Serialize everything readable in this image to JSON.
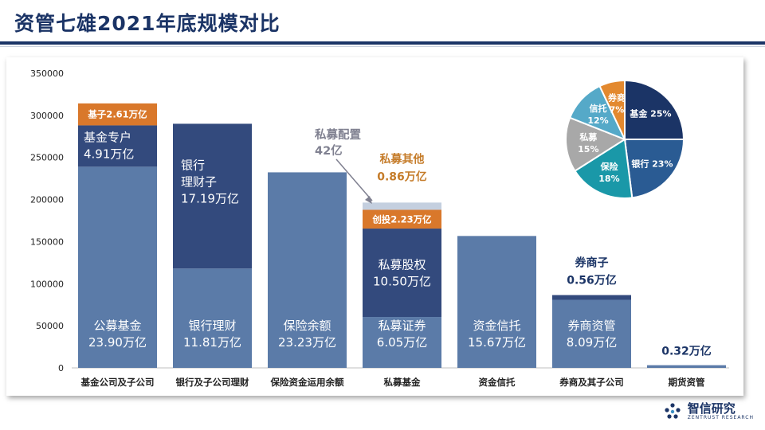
{
  "page": {
    "title": "资管七雄2021年底规模对比"
  },
  "logo": {
    "name": "智信研究",
    "subtitle": "ZENTRUST RESEARCH"
  },
  "colors": {
    "base": "#5b7ba8",
    "dark": "#334a7d",
    "orange": "#d9782b",
    "light": "#c4cfdf",
    "label_orange": "#c57c2a",
    "label_dark": "#1b3466",
    "annotation_gray": "#7f8090"
  },
  "chart_data": [
    {
      "type": "bar",
      "stacked": true,
      "title": "",
      "ylim": [
        0,
        350000
      ],
      "yticks": [
        0,
        50000,
        100000,
        150000,
        200000,
        250000,
        300000,
        350000
      ],
      "ytick_labels": [
        "0",
        "50000",
        "100000",
        "150000",
        "200000",
        "250000",
        "300000",
        "350000"
      ],
      "categories": [
        "基金公司及子公司",
        "银行及子公司理财",
        "保险资金运用余额",
        "私募基金",
        "资金信托",
        "券商及其子公司",
        "期货资管"
      ],
      "bars": [
        {
          "category": "基金公司及子公司",
          "segments": [
            {
              "name": "公募基金",
              "value": 239000,
              "color": "base",
              "label": [
                "公募基金",
                "23.90万亿"
              ],
              "label_pos": "in-bottom"
            },
            {
              "name": "基金专户",
              "value": 49100,
              "color": "dark",
              "label": [
                "基金专户",
                "4.91万亿"
              ],
              "label_pos": "in-top"
            },
            {
              "name": "基子",
              "value": 26100,
              "color": "orange",
              "label": [
                "基子2.61万亿"
              ],
              "label_pos": "in-top-small"
            }
          ]
        },
        {
          "category": "银行及子公司理财",
          "segments": [
            {
              "name": "银行理财",
              "value": 118100,
              "color": "base",
              "label": [
                "银行理财",
                "11.81万亿"
              ],
              "label_pos": "in-bottom"
            },
            {
              "name": "银行理财子",
              "value": 171900,
              "color": "dark",
              "label": [
                "银行",
                "理财子",
                "17.19万亿"
              ],
              "label_pos": "in-top"
            }
          ]
        },
        {
          "category": "保险资金运用余额",
          "segments": [
            {
              "name": "保险余额",
              "value": 232300,
              "color": "base",
              "label": [
                "保险余额",
                "23.23万亿"
              ],
              "label_pos": "in-bottom"
            }
          ]
        },
        {
          "category": "私募基金",
          "segments": [
            {
              "name": "私募证券",
              "value": 60500,
              "color": "base",
              "label": [
                "私募证券",
                "6.05万亿"
              ],
              "label_pos": "in-bottom"
            },
            {
              "name": "私募股权",
              "value": 105000,
              "color": "dark",
              "label": [
                "私募股权",
                "10.50万亿"
              ],
              "label_pos": "in-middle"
            },
            {
              "name": "创投",
              "value": 22300,
              "color": "orange",
              "label": [
                "创投2.23万亿"
              ],
              "label_pos": "in-top-small"
            },
            {
              "name": "私募其他",
              "value": 8600,
              "color": "light",
              "label": [
                "私募其他",
                "0.86万亿"
              ],
              "label_pos": "above-orange"
            }
          ]
        },
        {
          "category": "资金信托",
          "segments": [
            {
              "name": "资金信托",
              "value": 156700,
              "color": "base",
              "label": [
                "资金信托",
                "15.67万亿"
              ],
              "label_pos": "in-bottom"
            }
          ]
        },
        {
          "category": "券商及其子公司",
          "segments": [
            {
              "name": "券商资管",
              "value": 80900,
              "color": "base",
              "label": [
                "券商资管",
                "8.09万亿"
              ],
              "label_pos": "in-bottom"
            },
            {
              "name": "券商子",
              "value": 5600,
              "color": "dark",
              "label": [
                "券商子",
                "0.56万亿"
              ],
              "label_pos": "above-dark"
            }
          ]
        },
        {
          "category": "期货资管",
          "segments": [
            {
              "name": "期货资管",
              "value": 3200,
              "color": "base",
              "label": [
                "0.32万亿"
              ],
              "label_pos": "above-dark"
            }
          ]
        }
      ],
      "annotations": [
        {
          "text": [
            "私募配置",
            "42亿"
          ],
          "target": "私募基金",
          "arrow": true
        }
      ]
    },
    {
      "type": "pie",
      "slices": [
        {
          "label": "基金",
          "value": 25,
          "text": "基金 25%",
          "color": "#1b3466"
        },
        {
          "label": "银行",
          "value": 23,
          "text": "银行 23%",
          "color": "#2a5b93"
        },
        {
          "label": "保险",
          "value": 18,
          "text": "保险\n18%",
          "color": "#1a98a8"
        },
        {
          "label": "私募",
          "value": 15,
          "text": "私募\n15%",
          "color": "#a8a8a8"
        },
        {
          "label": "信托",
          "value": 12,
          "text": "信托\n12%",
          "color": "#55a9c8"
        },
        {
          "label": "券商",
          "value": 7,
          "text": "券商\n7%",
          "color": "#e3892f"
        }
      ]
    }
  ]
}
